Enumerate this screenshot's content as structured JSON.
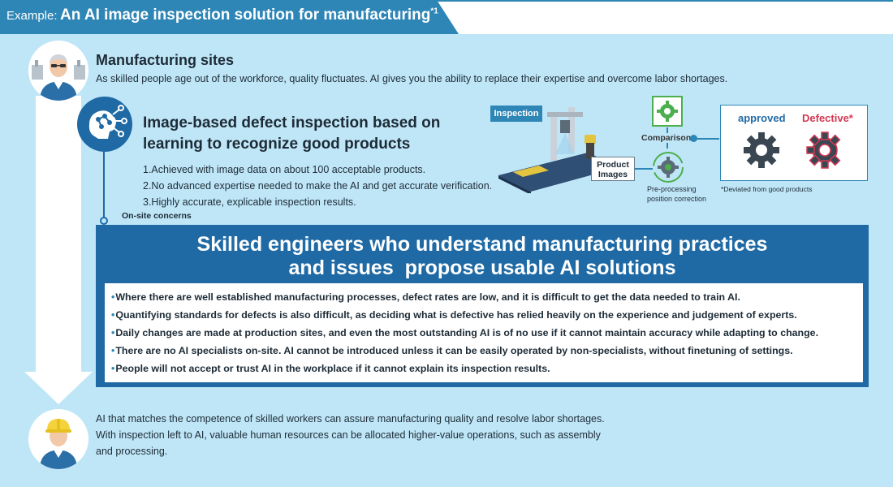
{
  "banner": {
    "prefix": "Example:",
    "title": "An AI image inspection solution for manufacturing",
    "footnote_mark": "*1"
  },
  "manufacturing": {
    "title": "Manufacturing sites",
    "text": "As skilled people age out of the workforce, quality fluctuates. AI gives you the ability to replace their expertise and overcome labor shortages."
  },
  "inspection": {
    "title_line1": "Image-based defect inspection based on",
    "title_line2": "learning to recognize good products",
    "points": [
      "1.Achieved with image data on about 100 acceptable products.",
      "2.No advanced expertise needed to make the AI and get accurate verification.",
      "3.Highly accurate, explicable inspection results."
    ],
    "onsite_label": "On-site concerns"
  },
  "diagram": {
    "inspection_label": "Inspection",
    "product_label_line1": "Product",
    "product_label_line2": "Images",
    "comparison_label": "Comparison",
    "preprocessing_line1": "Pre-processing",
    "preprocessing_line2": "position correction",
    "approved_label": "approved",
    "defective_label": "Defective*",
    "deviated_note": "*Deviated from good products",
    "colors": {
      "approved": "#1f6aa5",
      "defective": "#d23a53",
      "accent": "#2e86b6",
      "gear_ok": "#4cae4c"
    }
  },
  "solution": {
    "title_line1": "Skilled engineers who understand manufacturing practices",
    "title_line2": "and issues  propose usable AI solutions",
    "concerns": [
      "Where there are well established manufacturing processes, defect rates are low, and it is difficult to get the data needed to train AI.",
      "Quantifying standards for defects is also difficult, as deciding what is defective has relied heavily on the experience and judgement of experts.",
      "Daily changes are made at production sites, and even the most outstanding AI is of no use if it cannot maintain accuracy while adapting to change.",
      "There are no AI specialists on-site. AI cannot be introduced unless it can be easily operated by non-specialists, without finetuning of settings.",
      "People will not accept or trust AI in the workplace if it cannot explain its inspection results."
    ]
  },
  "result": {
    "lines": [
      "AI that matches the competence of skilled workers can assure manufacturing quality and resolve labor shortages.",
      "With inspection left to AI, valuable human resources can be allocated higher-value operations, such as assembly",
      "and processing."
    ]
  },
  "icons": {
    "worker_top": "senior-worker-avatar-icon",
    "inspection": "ai-brain-network-icon",
    "worker_bottom": "hardhat-worker-avatar-icon",
    "gear": "gear-icon"
  },
  "theme": {
    "banner": "#2e86b6",
    "panel": "#bfe6f7",
    "dark_box": "#1f6aa5",
    "text": "#1d2b36"
  }
}
